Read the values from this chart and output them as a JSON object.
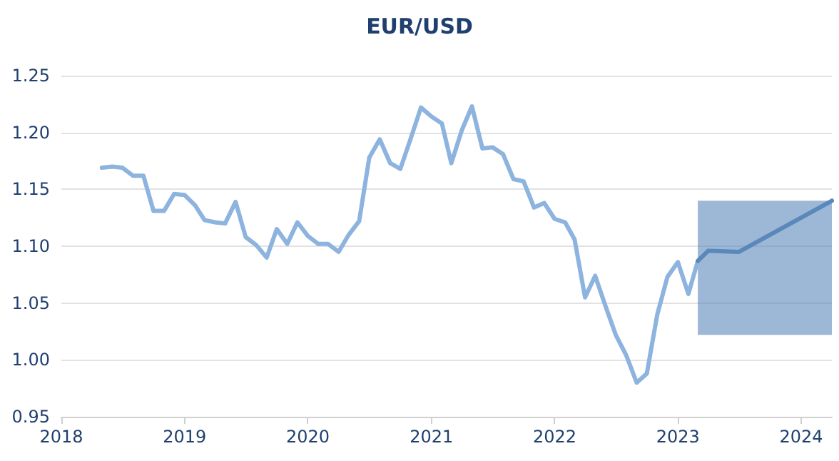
{
  "chart_data": {
    "type": "line",
    "title": "EUR/USD",
    "xlim": [
      "2018-01",
      "2024-04"
    ],
    "xticks": [
      "2018",
      "2019",
      "2020",
      "2021",
      "2022",
      "2023",
      "2024"
    ],
    "ylim": [
      0.95,
      1.25
    ],
    "yticks": [
      {
        "value": 0.95,
        "label": "0.95"
      },
      {
        "value": 1.0,
        "label": "1.00"
      },
      {
        "value": 1.05,
        "label": "1.05"
      },
      {
        "value": 1.1,
        "label": "1.10"
      },
      {
        "value": 1.15,
        "label": "1.15"
      },
      {
        "value": 1.2,
        "label": "1.20"
      },
      {
        "value": 1.25,
        "label": "1.25"
      }
    ],
    "grid": "y",
    "marker": "none",
    "line_style": "solid",
    "series": [
      {
        "color": "#8db3df",
        "x": [
          "2018-05",
          "2018-06",
          "2018-07",
          "2018-08",
          "2018-09",
          "2018-10",
          "2018-11",
          "2018-12",
          "2019-01",
          "2019-02",
          "2019-03",
          "2019-04",
          "2019-05",
          "2019-06",
          "2019-07",
          "2019-08",
          "2019-09",
          "2019-10",
          "2019-11",
          "2019-12",
          "2020-01",
          "2020-02",
          "2020-03",
          "2020-04",
          "2020-05",
          "2020-06",
          "2020-07",
          "2020-08",
          "2020-09",
          "2020-10",
          "2020-11",
          "2020-12",
          "2021-01",
          "2021-02",
          "2021-03",
          "2021-04",
          "2021-05",
          "2021-06",
          "2021-07",
          "2021-08",
          "2021-09",
          "2021-10",
          "2021-11",
          "2021-12",
          "2022-01",
          "2022-02",
          "2022-03",
          "2022-04",
          "2022-05",
          "2022-06",
          "2022-07",
          "2022-08",
          "2022-09",
          "2022-10",
          "2022-11",
          "2022-12",
          "2023-01",
          "2023-02",
          "2023-03"
        ],
        "values": [
          1.169,
          1.17,
          1.169,
          1.162,
          1.162,
          1.131,
          1.131,
          1.146,
          1.145,
          1.136,
          1.123,
          1.121,
          1.12,
          1.139,
          1.108,
          1.101,
          1.09,
          1.115,
          1.102,
          1.121,
          1.109,
          1.102,
          1.102,
          1.095,
          1.11,
          1.122,
          1.178,
          1.194,
          1.173,
          1.168,
          1.195,
          1.222,
          1.214,
          1.208,
          1.173,
          1.202,
          1.223,
          1.186,
          1.187,
          1.181,
          1.159,
          1.157,
          1.134,
          1.138,
          1.124,
          1.121,
          1.106,
          1.055,
          1.074,
          1.047,
          1.022,
          1.004,
          0.98,
          0.988,
          1.04,
          1.073,
          1.086,
          1.058,
          1.087
        ]
      },
      {
        "color": "#5b88bb",
        "x": [
          "2023-03",
          "2023-04",
          "2023-07",
          "2024-04"
        ],
        "values": [
          1.087,
          1.096,
          1.095,
          1.14
        ],
        "lower": [
          1.022,
          1.022,
          1.022,
          1.022
        ],
        "upper": [
          1.14,
          1.14,
          1.14,
          1.14
        ]
      }
    ]
  }
}
